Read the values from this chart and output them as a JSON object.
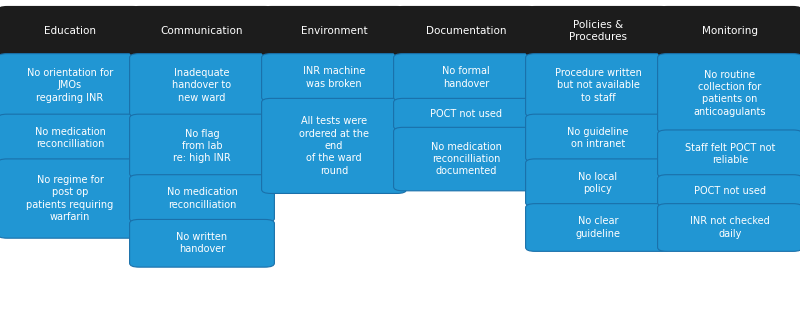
{
  "columns": [
    {
      "header": "Education",
      "items": [
        "No orientation for\nJMOs\nregarding INR",
        "No medication\nreconcilliation",
        "No regime for\npost op\npatients requiring\nwarfarin"
      ]
    },
    {
      "header": "Communication",
      "items": [
        "Inadequate\nhandover to\nnew ward",
        "No flag\nfrom lab\nre: high INR",
        "No medication\nreconcilliation",
        "No written\nhandover"
      ]
    },
    {
      "header": "Environment",
      "items": [
        "INR machine\nwas broken",
        "All tests were\nordered at the\nend\nof the ward\nround"
      ]
    },
    {
      "header": "Documentation",
      "items": [
        "No formal\nhandover",
        "POCT not used",
        "No medication\nreconcilliation\ndocumented"
      ]
    },
    {
      "header": "Policies &\nProcedures",
      "items": [
        "Procedure written\nbut not available\nto staff",
        "No guideline\non intranet",
        "No local\npolicy",
        "No clear\nguideline"
      ]
    },
    {
      "header": "Monitoring",
      "items": [
        "No routine\ncollection for\npatients on\nanticoagulants",
        "Staff felt POCT not\nreliable",
        "POCT not used",
        "INR not checked\ndaily"
      ]
    }
  ],
  "header_bg": "#1c1c1c",
  "header_fg": "#ffffff",
  "item_bg": "#2196d3",
  "item_fg": "#ffffff",
  "fig_bg": "#ffffff",
  "header_fontsize": 7.5,
  "item_fontsize": 7.0,
  "fig_width": 8.0,
  "fig_height": 3.29
}
